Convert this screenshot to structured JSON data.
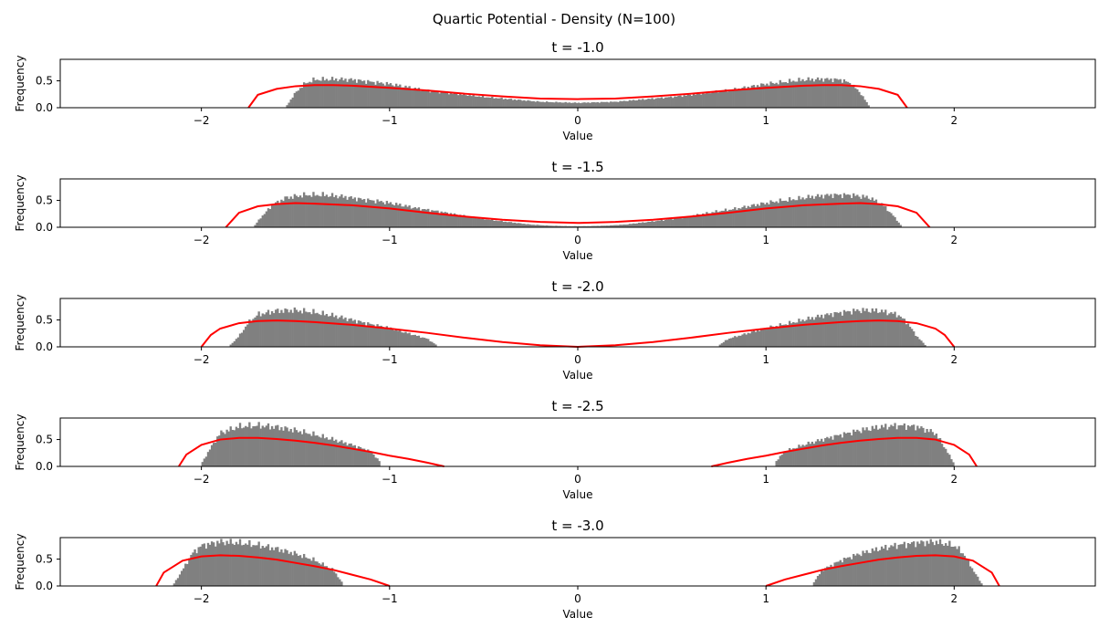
{
  "figure": {
    "suptitle": "Quartic Potential - Density (N=100)"
  },
  "colors": {
    "histogram": "#808080",
    "density_curve": "#ff0000",
    "axes": "#000000",
    "background": "#ffffff"
  },
  "chart_data": [
    {
      "type": "bar",
      "title": "t = -1.0",
      "xlabel": "Value",
      "ylabel": "Frequency",
      "xlim": [
        -2.75,
        2.75
      ],
      "ylim": [
        0,
        0.9
      ],
      "xticks": [
        -2,
        -1,
        0,
        1,
        2
      ],
      "xtick_labels": [
        "−2",
        "−1",
        "0",
        "1",
        "2"
      ],
      "yticks": [
        0.0,
        0.5
      ],
      "ytick_labels": [
        "0.0",
        "0.5"
      ],
      "series": [
        {
          "type": "histogram",
          "support": [
            [
              -1.55,
              1.55
            ]
          ],
          "x": [
            -1.55,
            -1.5,
            -1.45,
            -1.4,
            -1.3,
            -1.2,
            -1.1,
            -1.0,
            -0.9,
            -0.8,
            -0.7,
            -0.6,
            -0.5,
            -0.4,
            -0.3,
            -0.2,
            -0.1,
            0.0,
            0.1,
            0.2,
            0.3,
            0.4,
            0.5,
            0.6,
            0.7,
            0.8,
            0.9,
            1.0,
            1.1,
            1.2,
            1.3,
            1.4,
            1.45,
            1.5,
            1.55
          ],
          "values": [
            0.02,
            0.28,
            0.45,
            0.52,
            0.53,
            0.52,
            0.48,
            0.44,
            0.38,
            0.32,
            0.28,
            0.24,
            0.2,
            0.17,
            0.14,
            0.11,
            0.1,
            0.09,
            0.1,
            0.11,
            0.14,
            0.17,
            0.2,
            0.24,
            0.28,
            0.32,
            0.38,
            0.44,
            0.48,
            0.52,
            0.53,
            0.52,
            0.45,
            0.28,
            0.02
          ]
        },
        {
          "type": "density",
          "segments": [
            {
              "x": [
                -1.75,
                -1.7,
                -1.6,
                -1.5,
                -1.4,
                -1.3,
                -1.2,
                -1.0,
                -0.8,
                -0.6,
                -0.4,
                -0.2,
                0.0,
                0.2,
                0.4,
                0.6,
                0.8,
                1.0,
                1.2,
                1.3,
                1.4,
                1.5,
                1.6,
                1.7,
                1.75
              ],
              "y": [
                0.0,
                0.24,
                0.35,
                0.4,
                0.42,
                0.42,
                0.41,
                0.37,
                0.32,
                0.26,
                0.21,
                0.17,
                0.16,
                0.17,
                0.21,
                0.26,
                0.32,
                0.37,
                0.41,
                0.42,
                0.42,
                0.4,
                0.35,
                0.24,
                0.0
              ]
            }
          ]
        }
      ]
    },
    {
      "type": "bar",
      "title": "t = -1.5",
      "xlabel": "Value",
      "ylabel": "Frequency",
      "xlim": [
        -2.75,
        2.75
      ],
      "ylim": [
        0,
        0.9
      ],
      "xticks": [
        -2,
        -1,
        0,
        1,
        2
      ],
      "xtick_labels": [
        "−2",
        "−1",
        "0",
        "1",
        "2"
      ],
      "yticks": [
        0.0,
        0.5
      ],
      "ytick_labels": [
        "0.0",
        "0.5"
      ],
      "series": [
        {
          "type": "histogram",
          "support": [
            [
              -1.72,
              1.72
            ]
          ],
          "x": [
            -1.72,
            -1.68,
            -1.62,
            -1.55,
            -1.45,
            -1.35,
            -1.25,
            -1.15,
            -1.05,
            -0.95,
            -0.85,
            -0.75,
            -0.65,
            -0.55,
            -0.45,
            -0.35,
            -0.25,
            -0.15,
            -0.05,
            0.05,
            0.15,
            0.25,
            0.35,
            0.45,
            0.55,
            0.65,
            0.75,
            0.85,
            0.95,
            1.05,
            1.15,
            1.25,
            1.35,
            1.45,
            1.55,
            1.62,
            1.68,
            1.72
          ],
          "values": [
            0.02,
            0.2,
            0.42,
            0.55,
            0.6,
            0.6,
            0.57,
            0.52,
            0.48,
            0.42,
            0.35,
            0.3,
            0.24,
            0.18,
            0.13,
            0.09,
            0.05,
            0.03,
            0.02,
            0.02,
            0.03,
            0.05,
            0.09,
            0.13,
            0.18,
            0.24,
            0.3,
            0.35,
            0.42,
            0.48,
            0.52,
            0.57,
            0.6,
            0.6,
            0.55,
            0.42,
            0.2,
            0.02
          ]
        },
        {
          "type": "density",
          "segments": [
            {
              "x": [
                -1.87,
                -1.8,
                -1.7,
                -1.6,
                -1.5,
                -1.4,
                -1.2,
                -1.0,
                -0.8,
                -0.6,
                -0.4,
                -0.2,
                0.0,
                0.2,
                0.4,
                0.6,
                0.8,
                1.0,
                1.2,
                1.4,
                1.5,
                1.6,
                1.7,
                1.8,
                1.87
              ],
              "y": [
                0.0,
                0.27,
                0.39,
                0.43,
                0.45,
                0.44,
                0.41,
                0.35,
                0.27,
                0.2,
                0.14,
                0.1,
                0.08,
                0.1,
                0.14,
                0.2,
                0.27,
                0.35,
                0.41,
                0.44,
                0.45,
                0.43,
                0.39,
                0.27,
                0.0
              ]
            }
          ]
        }
      ]
    },
    {
      "type": "bar",
      "title": "t = -2.0",
      "xlabel": "Value",
      "ylabel": "Frequency",
      "xlim": [
        -2.75,
        2.75
      ],
      "ylim": [
        0,
        0.9
      ],
      "xticks": [
        -2,
        -1,
        0,
        1,
        2
      ],
      "xtick_labels": [
        "−2",
        "−1",
        "0",
        "1",
        "2"
      ],
      "yticks": [
        0.0,
        0.5
      ],
      "ytick_labels": [
        "0.0",
        "0.5"
      ],
      "series": [
        {
          "type": "histogram",
          "support": [
            [
              -1.85,
              -0.75
            ],
            [
              0.75,
              1.85
            ]
          ],
          "x": [
            -1.85,
            -1.8,
            -1.75,
            -1.7,
            -1.6,
            -1.5,
            -1.4,
            -1.3,
            -1.2,
            -1.1,
            -1.0,
            -0.9,
            -0.8,
            -0.75,
            0.75,
            0.8,
            0.9,
            1.0,
            1.1,
            1.2,
            1.3,
            1.4,
            1.5,
            1.6,
            1.7,
            1.75,
            1.8,
            1.85
          ],
          "values": [
            0.02,
            0.2,
            0.45,
            0.6,
            0.67,
            0.68,
            0.64,
            0.58,
            0.5,
            0.42,
            0.35,
            0.25,
            0.15,
            0.03,
            0.03,
            0.15,
            0.25,
            0.35,
            0.42,
            0.5,
            0.58,
            0.64,
            0.68,
            0.67,
            0.6,
            0.45,
            0.2,
            0.02
          ]
        },
        {
          "type": "density",
          "segments": [
            {
              "x": [
                -2.0,
                -1.95,
                -1.9,
                -1.8,
                -1.7,
                -1.6,
                -1.5,
                -1.4,
                -1.2,
                -1.0,
                -0.8,
                -0.6,
                -0.4,
                -0.2,
                0.0,
                0.2,
                0.4,
                0.6,
                0.8,
                1.0,
                1.2,
                1.4,
                1.5,
                1.6,
                1.7,
                1.8,
                1.9,
                1.95,
                2.0
              ],
              "y": [
                0.0,
                0.22,
                0.34,
                0.44,
                0.48,
                0.49,
                0.48,
                0.46,
                0.41,
                0.34,
                0.26,
                0.17,
                0.09,
                0.03,
                0.0,
                0.03,
                0.09,
                0.17,
                0.26,
                0.34,
                0.41,
                0.46,
                0.48,
                0.49,
                0.48,
                0.44,
                0.34,
                0.22,
                0.0
              ]
            }
          ]
        }
      ]
    },
    {
      "type": "bar",
      "title": "t = -2.5",
      "xlabel": "Value",
      "ylabel": "Frequency",
      "xlim": [
        -2.75,
        2.75
      ],
      "ylim": [
        0,
        0.9
      ],
      "xticks": [
        -2,
        -1,
        0,
        1,
        2
      ],
      "xtick_labels": [
        "−2",
        "−1",
        "0",
        "1",
        "2"
      ],
      "yticks": [
        0.0,
        0.5
      ],
      "ytick_labels": [
        "0.0",
        "0.5"
      ],
      "series": [
        {
          "type": "histogram",
          "support": [
            [
              -2.0,
              -1.05
            ],
            [
              1.05,
              2.0
            ]
          ],
          "x": [
            -2.0,
            -1.95,
            -1.9,
            -1.8,
            -1.7,
            -1.6,
            -1.5,
            -1.4,
            -1.3,
            -1.2,
            -1.1,
            -1.05,
            1.05,
            1.1,
            1.2,
            1.3,
            1.4,
            1.5,
            1.6,
            1.7,
            1.8,
            1.9,
            1.95,
            2.0
          ],
          "values": [
            0.05,
            0.35,
            0.62,
            0.74,
            0.76,
            0.73,
            0.67,
            0.59,
            0.5,
            0.4,
            0.28,
            0.08,
            0.08,
            0.28,
            0.4,
            0.5,
            0.59,
            0.67,
            0.73,
            0.76,
            0.74,
            0.62,
            0.35,
            0.05
          ]
        },
        {
          "type": "density",
          "segments": [
            {
              "x": [
                -2.12,
                -2.08,
                -2.0,
                -1.9,
                -1.8,
                -1.7,
                -1.6,
                -1.5,
                -1.4,
                -1.3,
                -1.2,
                -1.1,
                -1.0,
                -0.9,
                -0.8,
                -0.71
              ],
              "y": [
                0.0,
                0.22,
                0.4,
                0.5,
                0.53,
                0.53,
                0.51,
                0.48,
                0.44,
                0.39,
                0.33,
                0.27,
                0.2,
                0.14,
                0.07,
                0.0
              ]
            },
            {
              "x": [
                0.71,
                0.8,
                0.9,
                1.0,
                1.1,
                1.2,
                1.3,
                1.4,
                1.5,
                1.6,
                1.7,
                1.8,
                1.9,
                2.0,
                2.08,
                2.12
              ],
              "y": [
                0.0,
                0.07,
                0.14,
                0.2,
                0.27,
                0.33,
                0.39,
                0.44,
                0.48,
                0.51,
                0.53,
                0.53,
                0.5,
                0.4,
                0.22,
                0.0
              ]
            }
          ]
        }
      ]
    },
    {
      "type": "bar",
      "title": "t = -3.0",
      "xlabel": "Value",
      "ylabel": "Frequency",
      "xlim": [
        -2.75,
        2.75
      ],
      "ylim": [
        0,
        0.9
      ],
      "xticks": [
        -2,
        -1,
        0,
        1,
        2
      ],
      "xtick_labels": [
        "−2",
        "−1",
        "0",
        "1",
        "2"
      ],
      "yticks": [
        0.0,
        0.5
      ],
      "ytick_labels": [
        "0.0",
        "0.5"
      ],
      "series": [
        {
          "type": "histogram",
          "support": [
            [
              -2.15,
              -1.25
            ],
            [
              1.25,
              2.15
            ]
          ],
          "x": [
            -2.15,
            -2.1,
            -2.05,
            -2.0,
            -1.9,
            -1.8,
            -1.7,
            -1.6,
            -1.5,
            -1.4,
            -1.3,
            -1.25,
            1.25,
            1.3,
            1.4,
            1.5,
            1.6,
            1.7,
            1.8,
            1.9,
            2.0,
            2.05,
            2.1,
            2.15
          ],
          "values": [
            0.02,
            0.3,
            0.6,
            0.75,
            0.82,
            0.8,
            0.76,
            0.69,
            0.6,
            0.48,
            0.3,
            0.05,
            0.05,
            0.3,
            0.48,
            0.6,
            0.69,
            0.76,
            0.8,
            0.82,
            0.75,
            0.6,
            0.3,
            0.02
          ]
        },
        {
          "type": "density",
          "segments": [
            {
              "x": [
                -2.24,
                -2.2,
                -2.1,
                -2.0,
                -1.9,
                -1.8,
                -1.7,
                -1.6,
                -1.5,
                -1.4,
                -1.3,
                -1.2,
                -1.1,
                -1.0
              ],
              "y": [
                0.0,
                0.25,
                0.47,
                0.55,
                0.57,
                0.56,
                0.53,
                0.49,
                0.43,
                0.37,
                0.3,
                0.21,
                0.12,
                0.0
              ]
            },
            {
              "x": [
                1.0,
                1.1,
                1.2,
                1.3,
                1.4,
                1.5,
                1.6,
                1.7,
                1.8,
                1.9,
                2.0,
                2.1,
                2.2,
                2.24
              ],
              "y": [
                0.0,
                0.12,
                0.21,
                0.3,
                0.37,
                0.43,
                0.49,
                0.53,
                0.56,
                0.57,
                0.55,
                0.47,
                0.25,
                0.0
              ]
            }
          ]
        }
      ]
    }
  ]
}
